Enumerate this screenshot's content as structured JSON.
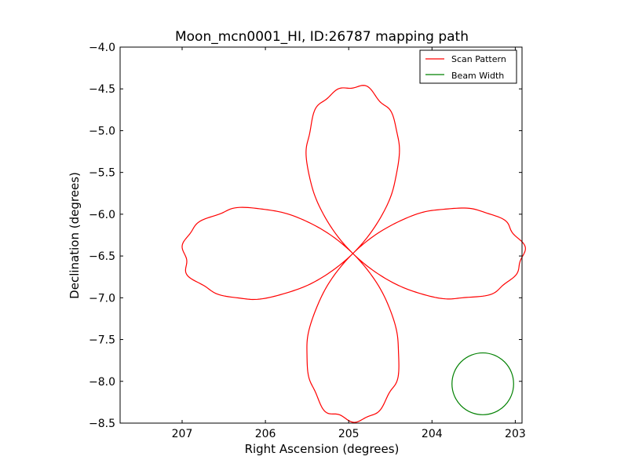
{
  "chart_data": {
    "type": "line",
    "title": "Moon_mcn0001_HI, ID:26787 mapping path",
    "xlabel": "Right Ascension (degrees)",
    "ylabel": "Declination (degrees)",
    "xlim": [
      207.7,
      202.97
    ],
    "ylim": [
      -8.5,
      -4.0
    ],
    "x_inverted": true,
    "xticks": [
      207,
      206,
      205,
      204,
      203
    ],
    "xtick_labels": [
      "207",
      "206",
      "205",
      "204",
      "203"
    ],
    "yticks": [
      -4.0,
      -4.5,
      -5.0,
      -5.5,
      -6.0,
      -6.5,
      -7.0,
      -7.5,
      -8.0,
      -8.5
    ],
    "ytick_labels": [
      "−4.0",
      "−4.5",
      "−5.0",
      "−5.5",
      "−6.0",
      "−6.5",
      "−7.0",
      "−7.5",
      "−8.0",
      "−8.5"
    ],
    "grid": false,
    "legend_position": "top-right",
    "series": [
      {
        "name": "Scan Pattern",
        "color": "#ff0000",
        "pattern": "four-petal rose centered at (204.95, -6.47)",
        "center": [
          204.95,
          -6.47
        ],
        "petal_tips": [
          [
            204.95,
            -4.46
          ],
          [
            204.95,
            -8.48
          ],
          [
            207.0,
            -6.47
          ],
          [
            202.98,
            -6.47
          ]
        ],
        "petal_half_width_ra": 0.58,
        "petal_half_width_dec": 0.55
      },
      {
        "name": "Beam Width",
        "color": "#008000",
        "shape": "circle",
        "center": [
          203.39,
          -8.03
        ],
        "radius_deg": 0.37
      }
    ]
  }
}
